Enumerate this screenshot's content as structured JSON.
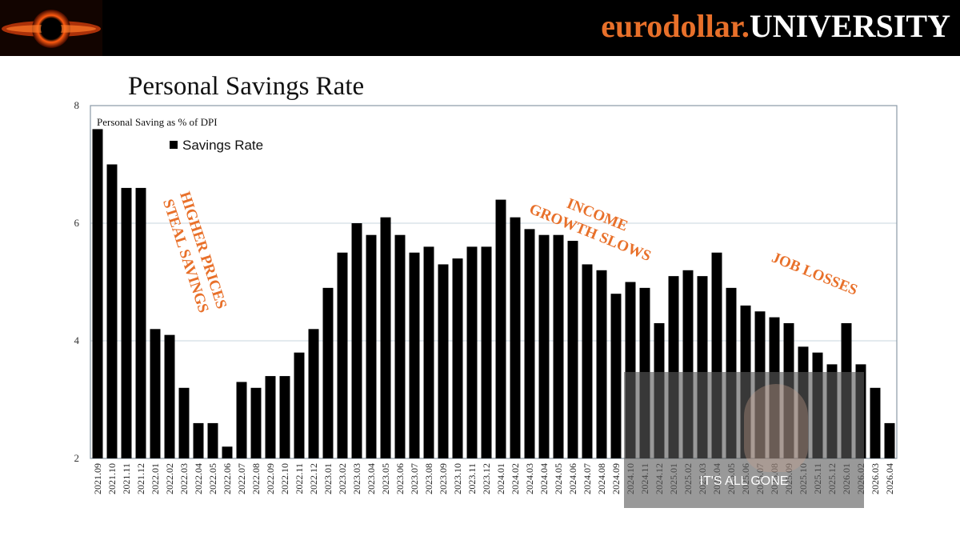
{
  "header": {
    "brand_part1": "eurodollar.",
    "brand_part2": "UNIVERSITY",
    "accent_color": "#e8702a"
  },
  "slide_title": "Personal Savings Rate",
  "chart_data": {
    "type": "bar",
    "title": "Personal Savings Rate",
    "subtitle": "Personal Saving as % of DPI",
    "xlabel": "",
    "ylabel": "",
    "ylim": [
      2,
      8
    ],
    "yticks": [
      2,
      4,
      6,
      8
    ],
    "grid": true,
    "legend_position": "top-left",
    "bar_color": "#000000",
    "series": [
      {
        "name": "Savings Rate",
        "values": [
          7.6,
          7.0,
          6.6,
          6.6,
          4.2,
          4.1,
          3.2,
          2.6,
          2.6,
          2.2,
          3.3,
          3.2,
          3.4,
          3.4,
          3.8,
          4.2,
          4.9,
          5.5,
          6.0,
          5.8,
          6.1,
          5.8,
          5.5,
          5.6,
          5.3,
          5.4,
          5.6,
          5.6,
          6.4,
          6.1,
          5.9,
          5.8,
          5.8,
          5.7,
          5.3,
          5.2,
          4.8,
          5.0,
          4.9,
          4.3,
          5.1,
          5.2,
          5.1,
          5.5,
          4.9,
          4.6,
          4.5,
          4.4,
          4.3,
          3.9,
          3.8,
          3.6,
          4.3,
          3.6,
          3.2,
          2.6
        ]
      }
    ],
    "categories": [
      "2021.09",
      "2021.10",
      "2021.11",
      "2021.12",
      "2022.01",
      "2022.02",
      "2022.03",
      "2022.04",
      "2022.05",
      "2022.06",
      "2022.07",
      "2022.08",
      "2022.09",
      "2022.10",
      "2022.11",
      "2022.12",
      "2023.01",
      "2023.02",
      "2023.03",
      "2023.04",
      "2023.05",
      "2023.06",
      "2023.07",
      "2023.08",
      "2023.09",
      "2023.10",
      "2023.11",
      "2023.12",
      "2024.01",
      "2024.02",
      "2024.03",
      "2024.04",
      "2024.05",
      "2024.06",
      "2024.07",
      "2024.08",
      "2024.09",
      "2024.10",
      "2024.11",
      "2024.12",
      "2025.01",
      "2025.02",
      "2025.03",
      "2025.04",
      "2025.05",
      "2025.06",
      "2025.07",
      "2025.08",
      "2025.09",
      "2025.10",
      "2025.11",
      "2025.12",
      "2026.01",
      "2026.02",
      "2026.03",
      "2026.04"
    ],
    "annotations": [
      {
        "lines": [
          "HIGHER PRICES",
          "STEAL SAVINGS"
        ],
        "color": "#e8702a"
      },
      {
        "lines": [
          "INCOME",
          "GROWTH SLOWS"
        ],
        "color": "#e8702a"
      },
      {
        "lines": [
          "JOB LOSSES"
        ],
        "color": "#e8702a"
      }
    ]
  },
  "video_overlay": {
    "caption": "IT'S ALL GONE"
  }
}
